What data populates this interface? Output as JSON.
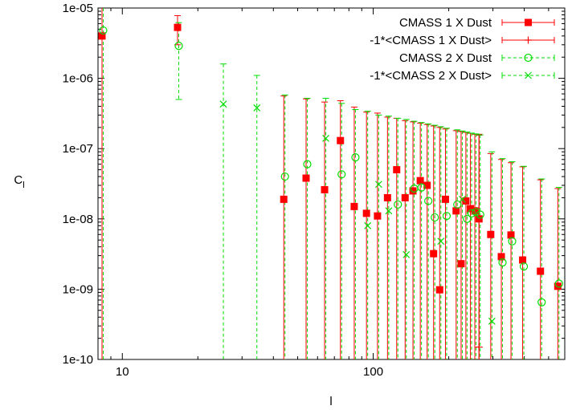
{
  "chart_data": {
    "type": "scatter",
    "title": "",
    "xlabel": "l",
    "ylabel": "C_l",
    "xscale": "log",
    "yscale": "log",
    "xlim": [
      8,
      580
    ],
    "ylim": [
      1e-10,
      1e-05
    ],
    "xticks": [
      10,
      100
    ],
    "xtick_labels": [
      "10",
      "100"
    ],
    "yticks": [
      1e-10,
      1e-09,
      1e-08,
      1e-07,
      1e-06,
      1e-05
    ],
    "ytick_labels": [
      "1e-10",
      "1e-09",
      "1e-08",
      "1e-07",
      "1e-06",
      "1e-05"
    ],
    "legend_position": "top-right",
    "series": [
      {
        "name": "CMASS 1 X Dust",
        "color": "#ff0000",
        "marker": "filled-square",
        "points": [
          {
            "x": 8.3,
            "y": 4e-06,
            "lo": 1e-10,
            "hi": 1e-05
          },
          {
            "x": 16.6,
            "y": 5.3e-06,
            "lo": 3e-06,
            "hi": 7.8e-06
          },
          {
            "x": 44,
            "y": 1.9e-08,
            "lo": 1e-10,
            "hi": 5.6e-07
          },
          {
            "x": 54,
            "y": 3.8e-08,
            "lo": 1e-10,
            "hi": 5.1e-07
          },
          {
            "x": 64,
            "y": 2.6e-08,
            "lo": 1e-10,
            "hi": 4.6e-07
          },
          {
            "x": 74,
            "y": 1.3e-07,
            "lo": 1e-10,
            "hi": 4.8e-07
          },
          {
            "x": 84,
            "y": 1.5e-08,
            "lo": 1e-10,
            "hi": 3.9e-07
          },
          {
            "x": 94,
            "y": 1.2e-08,
            "lo": 1e-10,
            "hi": 3.3e-07
          },
          {
            "x": 104,
            "y": 1.1e-08,
            "lo": 1e-10,
            "hi": 3.2e-07
          },
          {
            "x": 114,
            "y": 2e-08,
            "lo": 1e-10,
            "hi": 2.8e-07
          },
          {
            "x": 124,
            "y": 5e-08,
            "lo": 1e-10,
            "hi": 2.7e-07
          },
          {
            "x": 134,
            "y": 2e-08,
            "lo": 1e-10,
            "hi": 2.5e-07
          },
          {
            "x": 144,
            "y": 2.5e-08,
            "lo": 1e-10,
            "hi": 2.4e-07
          },
          {
            "x": 154,
            "y": 3.5e-08,
            "lo": 1e-10,
            "hi": 2.3e-07
          },
          {
            "x": 164,
            "y": 3e-08,
            "lo": 1e-10,
            "hi": 2.2e-07
          },
          {
            "x": 174,
            "y": 3.2e-09,
            "lo": 1e-10,
            "hi": 2.1e-07
          },
          {
            "x": 184,
            "y": 9.8e-10,
            "lo": 1e-10,
            "hi": 2e-07
          },
          {
            "x": 194,
            "y": 1.9e-08,
            "lo": 1e-10,
            "hi": 1.9e-07
          },
          {
            "x": 214,
            "y": 1.3e-08,
            "lo": 1e-10,
            "hi": 1.8e-07
          },
          {
            "x": 224,
            "y": 2.3e-09,
            "lo": 1e-10,
            "hi": 1.75e-07
          },
          {
            "x": 234,
            "y": 1.8e-08,
            "lo": 1e-10,
            "hi": 1.7e-07
          },
          {
            "x": 244,
            "y": 1.4e-08,
            "lo": 1e-10,
            "hi": 1.65e-07
          },
          {
            "x": 254,
            "y": 1.3e-08,
            "lo": 1e-10,
            "hi": 1.6e-07
          },
          {
            "x": 264,
            "y": 1e-08,
            "lo": 1e-10,
            "hi": 1.55e-07
          },
          {
            "x": 294,
            "y": 6e-09,
            "lo": 1e-10,
            "hi": 8.5e-08
          },
          {
            "x": 324,
            "y": 2.9e-09,
            "lo": 1e-10,
            "hi": 7e-08
          },
          {
            "x": 354,
            "y": 5.9e-09,
            "lo": 1e-10,
            "hi": 6.3e-08
          },
          {
            "x": 394,
            "y": 2.6e-09,
            "lo": 1e-10,
            "hi": 5.5e-08
          },
          {
            "x": 464,
            "y": 1.8e-09,
            "lo": 1e-10,
            "hi": 3.6e-08
          },
          {
            "x": 544,
            "y": 1.1e-09,
            "lo": 1e-10,
            "hi": 2.7e-08
          }
        ]
      },
      {
        "name": "-1*<CMASS 1 X Dust>",
        "color": "#ff0000",
        "marker": "plus",
        "points": [
          {
            "x": 264,
            "y": 1.5e-10,
            "lo": 1e-10,
            "hi": 1.6e-07
          }
        ]
      },
      {
        "name": "CMASS 2 X Dust",
        "color": "#00dd00",
        "marker": "open-circle",
        "points": [
          {
            "x": 8.3,
            "y": 4.8e-06,
            "lo": 1e-10,
            "hi": 1e-05
          },
          {
            "x": 16.6,
            "y": 2.9e-06,
            "lo": 5e-07,
            "hi": 6.2e-06
          },
          {
            "x": 44,
            "y": 4e-08,
            "lo": 1e-10,
            "hi": 5.8e-07
          },
          {
            "x": 54,
            "y": 6e-08,
            "lo": 1e-10,
            "hi": 5.2e-07
          },
          {
            "x": 74,
            "y": 4.3e-08,
            "lo": 1e-10,
            "hi": 4.4e-07
          },
          {
            "x": 84,
            "y": 7.5e-08,
            "lo": 1e-10,
            "hi": 3.6e-07
          },
          {
            "x": 124,
            "y": 1.6e-08,
            "lo": 1e-10,
            "hi": 2.7e-07
          },
          {
            "x": 144,
            "y": 2.7e-08,
            "lo": 1e-10,
            "hi": 2.45e-07
          },
          {
            "x": 154,
            "y": 2.8e-08,
            "lo": 1e-10,
            "hi": 2.35e-07
          },
          {
            "x": 164,
            "y": 1.8e-08,
            "lo": 1e-10,
            "hi": 2.25e-07
          },
          {
            "x": 174,
            "y": 1.05e-08,
            "lo": 1e-10,
            "hi": 2.15e-07
          },
          {
            "x": 194,
            "y": 1.1e-08,
            "lo": 1e-10,
            "hi": 1.95e-07
          },
          {
            "x": 214,
            "y": 1.6e-08,
            "lo": 1e-10,
            "hi": 1.85e-07
          },
          {
            "x": 234,
            "y": 1e-08,
            "lo": 1e-10,
            "hi": 1.72e-07
          },
          {
            "x": 244,
            "y": 1.2e-08,
            "lo": 1e-10,
            "hi": 1.66e-07
          },
          {
            "x": 254,
            "y": 1.25e-08,
            "lo": 1e-10,
            "hi": 1.62e-07
          },
          {
            "x": 264,
            "y": 1.15e-08,
            "lo": 1e-10,
            "hi": 1.57e-07
          },
          {
            "x": 324,
            "y": 2.4e-09,
            "lo": 1e-10,
            "hi": 7.2e-08
          },
          {
            "x": 354,
            "y": 4.8e-09,
            "lo": 1e-10,
            "hi": 6.5e-08
          },
          {
            "x": 394,
            "y": 2.1e-09,
            "lo": 1e-10,
            "hi": 5.6e-08
          },
          {
            "x": 464,
            "y": 6.5e-10,
            "lo": 1e-10,
            "hi": 3.7e-08
          },
          {
            "x": 544,
            "y": 1.2e-09,
            "lo": 1e-10,
            "hi": 2.8e-08
          }
        ]
      },
      {
        "name": "-1*<CMASS 2 X Dust>",
        "color": "#00dd00",
        "marker": "cross",
        "points": [
          {
            "x": 25,
            "y": 4.3e-07,
            "lo": 1e-10,
            "hi": 1.6e-06
          },
          {
            "x": 34,
            "y": 3.8e-07,
            "lo": 1e-10,
            "hi": 1.1e-06
          },
          {
            "x": 64,
            "y": 1.4e-07,
            "lo": 1e-10,
            "hi": 5.2e-07
          },
          {
            "x": 94,
            "y": 8e-09,
            "lo": 1e-10,
            "hi": 3.4e-07
          },
          {
            "x": 104,
            "y": 3.1e-08,
            "lo": 1e-10,
            "hi": 3e-07
          },
          {
            "x": 114,
            "y": 1.3e-08,
            "lo": 1e-10,
            "hi": 2.9e-07
          },
          {
            "x": 134,
            "y": 3.1e-09,
            "lo": 1e-10,
            "hi": 2.6e-07
          },
          {
            "x": 184,
            "y": 4.8e-09,
            "lo": 1e-10,
            "hi": 2.05e-07
          },
          {
            "x": 224,
            "y": 1.9e-08,
            "lo": 1e-10,
            "hi": 1.78e-07
          },
          {
            "x": 294,
            "y": 3.5e-10,
            "lo": 1e-10,
            "hi": 9e-08
          }
        ]
      }
    ]
  }
}
